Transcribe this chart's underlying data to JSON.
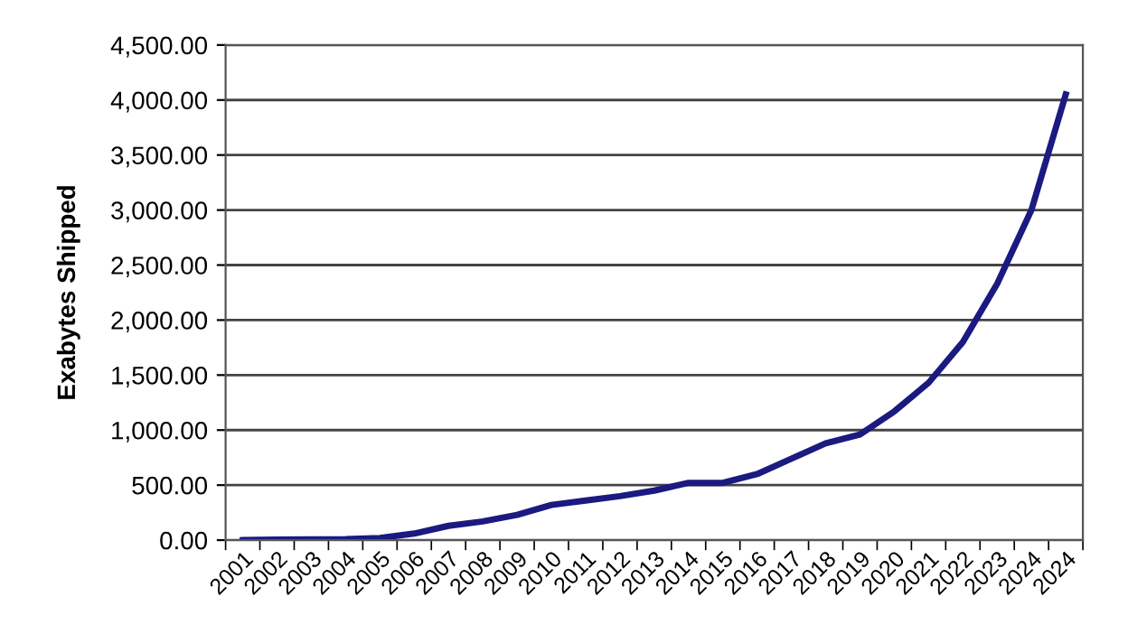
{
  "chart_data": {
    "type": "line",
    "ylabel": "Exabytes Shipped",
    "categories": [
      "2001",
      "2002",
      "2003",
      "2004",
      "2005",
      "2006",
      "2007",
      "2008",
      "2009",
      "2010",
      "2011",
      "2012",
      "2013",
      "2014",
      "2015",
      "2016",
      "2017",
      "2018",
      "2019",
      "2020",
      "2021",
      "2022",
      "2023",
      "2024",
      "2024"
    ],
    "series": [
      {
        "color": "#1a1a80",
        "values": [
          0,
          5,
          8,
          10,
          20,
          60,
          130,
          170,
          230,
          320,
          360,
          400,
          450,
          520,
          520,
          600,
          740,
          880,
          960,
          1170,
          1430,
          1800,
          2330,
          3000,
          4050
        ]
      }
    ],
    "ylim": [
      0,
      4500
    ],
    "yticks": [
      {
        "value": 0,
        "label": "0.00"
      },
      {
        "value": 500,
        "label": "500.00"
      },
      {
        "value": 1000,
        "label": "1,000.00"
      },
      {
        "value": 1500,
        "label": "1,500.00"
      },
      {
        "value": 2000,
        "label": "2,000.00"
      },
      {
        "value": 2500,
        "label": "2,500.00"
      },
      {
        "value": 3000,
        "label": "3,000.00"
      },
      {
        "value": 3500,
        "label": "3,500.00"
      },
      {
        "value": 4000,
        "label": "4,000.00"
      },
      {
        "value": 4500,
        "label": "4,500.00"
      }
    ],
    "grid": "y",
    "marker": "none",
    "line_style": "solid",
    "legend": false
  }
}
